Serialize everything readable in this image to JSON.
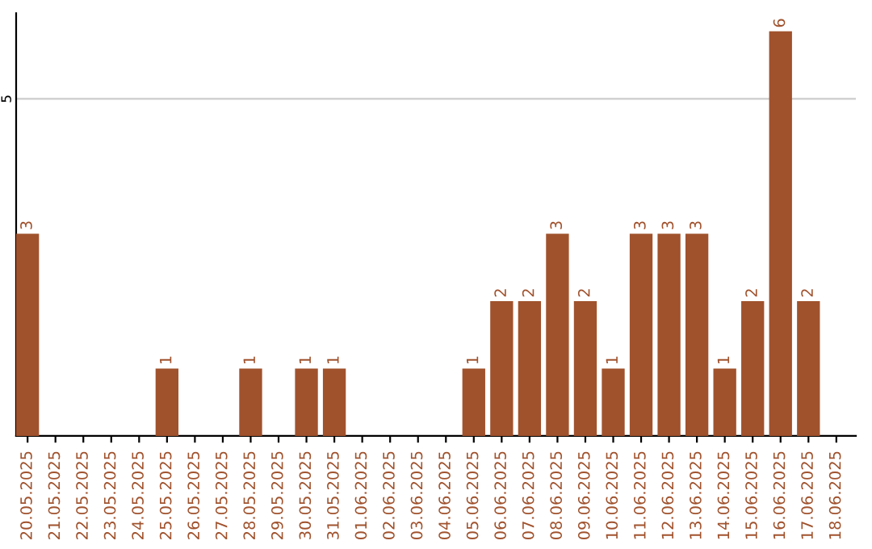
{
  "chart_data": {
    "type": "bar",
    "categories": [
      "20.05.2025",
      "21.05.2025",
      "22.05.2025",
      "23.05.2025",
      "24.05.2025",
      "25.05.2025",
      "26.05.2025",
      "27.05.2025",
      "28.05.2025",
      "29.05.2025",
      "30.05.2025",
      "31.05.2025",
      "01.06.2025",
      "02.06.2025",
      "03.06.2025",
      "04.06.2025",
      "05.06.2025",
      "06.06.2025",
      "07.06.2025",
      "08.06.2025",
      "09.06.2025",
      "10.06.2025",
      "11.06.2025",
      "12.06.2025",
      "13.06.2025",
      "14.06.2025",
      "15.06.2025",
      "16.06.2025",
      "17.06.2025",
      "18.06.2025"
    ],
    "values": [
      3,
      0,
      0,
      0,
      0,
      1,
      0,
      0,
      1,
      0,
      1,
      1,
      0,
      0,
      0,
      0,
      1,
      2,
      2,
      3,
      2,
      1,
      3,
      3,
      3,
      1,
      2,
      6,
      2,
      0
    ],
    "value_labels": [
      "3",
      null,
      null,
      null,
      null,
      "1",
      null,
      null,
      "1",
      null,
      "1",
      "1",
      null,
      null,
      null,
      null,
      "1",
      "2",
      "2",
      "3",
      "2",
      "1",
      "3",
      "3",
      "3",
      "1",
      "2",
      "6",
      "2",
      null
    ],
    "color": "#a0522d",
    "ylim": [
      0,
      6.27
    ],
    "yticks": [
      5
    ],
    "grid": "y"
  }
}
